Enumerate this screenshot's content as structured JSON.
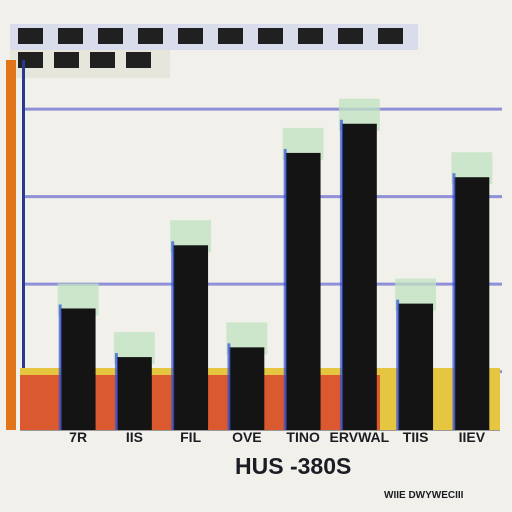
{
  "colors": {
    "background": "#f1f0ea",
    "bar": "#141414",
    "gridline": "#8f90d8",
    "axis": "#1e2f8a",
    "left_rail": "#e2741a",
    "baseline_band": "#e6c640",
    "baseline_red": "#d8452c",
    "highlight_green": "#bfe3c0",
    "highlight_blue": "#3050d8"
  },
  "chart_data": {
    "type": "bar",
    "categories": [
      "7R",
      "IIS",
      "FIL",
      "OVE",
      "TINO",
      "ERVWAL",
      "TIIS",
      "IIEV"
    ],
    "values": [
      12.5,
      7.5,
      19.0,
      8.5,
      28.5,
      31.5,
      13.0,
      26.0
    ],
    "ylim": [
      0,
      36
    ],
    "grid": true,
    "legend_swatches": 14,
    "footer_text": "HUS -380S",
    "corner_text": "WIIE DWYWECIII"
  }
}
